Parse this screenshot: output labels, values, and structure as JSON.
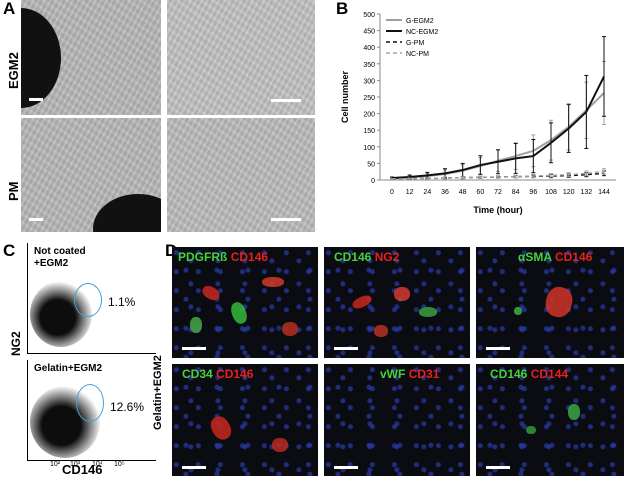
{
  "panels": {
    "a": "A",
    "b": "B",
    "c": "C",
    "d": "D"
  },
  "panel_a": {
    "row_top": "EGM2",
    "row_bottom": "PM"
  },
  "panel_c": {
    "top_title_line1": "Not coated",
    "top_title_line2": "+EGM2",
    "top_pct": "1.1%",
    "bottom_title": "Gelatin+EGM2",
    "bottom_pct": "12.6%",
    "ylabel": "NG2",
    "xlabel": "CD146",
    "tick_labels": [
      "10²",
      "10³",
      "10⁴",
      "10⁵"
    ]
  },
  "panel_d": {
    "side_label": "Gelatin+EGM2",
    "images": [
      {
        "green": "PDGFRß",
        "red": "CD146"
      },
      {
        "green": "CD146",
        "red": "NG2"
      },
      {
        "green": "αSMA",
        "red": "CD146"
      },
      {
        "green": "CD34",
        "red": "CD146"
      },
      {
        "green": "vWF",
        "red": "CD31"
      },
      {
        "green": "CD146",
        "red": "CD144"
      }
    ],
    "colors": {
      "green": "#46d23c",
      "red": "#e8201e"
    }
  },
  "chart_data": {
    "type": "line",
    "xlabel": "Time (hour)",
    "ylabel": "Cell number",
    "x": [
      0,
      12,
      24,
      36,
      48,
      60,
      72,
      84,
      96,
      108,
      120,
      132,
      144
    ],
    "ylim": [
      0,
      500
    ],
    "yticks": [
      0,
      50,
      100,
      150,
      200,
      250,
      300,
      350,
      400,
      450,
      500
    ],
    "legend_position": "top-left",
    "series": [
      {
        "name": "G-EGM2",
        "color": "#a0a0a0",
        "dash": "solid",
        "values": [
          5,
          8,
          12,
          18,
          28,
          42,
          58,
          72,
          88,
          120,
          160,
          210,
          262
        ],
        "errors": [
          3,
          5,
          8,
          12,
          18,
          25,
          32,
          40,
          48,
          60,
          70,
          85,
          95
        ]
      },
      {
        "name": "NC-EGM2",
        "color": "#111111",
        "dash": "solid",
        "values": [
          6,
          9,
          14,
          20,
          30,
          45,
          55,
          65,
          72,
          112,
          155,
          205,
          312
        ],
        "errors": [
          3,
          6,
          9,
          14,
          20,
          28,
          36,
          45,
          50,
          60,
          72,
          110,
          120
        ]
      },
      {
        "name": "G-PM",
        "color": "#111111",
        "dash": "dashed",
        "values": [
          3,
          4,
          5,
          6,
          7,
          8,
          9,
          10,
          11,
          12,
          13,
          16,
          20
        ],
        "errors": [
          1,
          2,
          2,
          2,
          3,
          3,
          3,
          4,
          4,
          5,
          5,
          6,
          7
        ]
      },
      {
        "name": "NC-PM",
        "color": "#a0a0a0",
        "dash": "dashed",
        "values": [
          3,
          4,
          5,
          6,
          7,
          8,
          9,
          10,
          12,
          14,
          16,
          20,
          26
        ],
        "errors": [
          1,
          2,
          2,
          3,
          3,
          3,
          4,
          4,
          5,
          5,
          6,
          7,
          8
        ]
      }
    ]
  }
}
